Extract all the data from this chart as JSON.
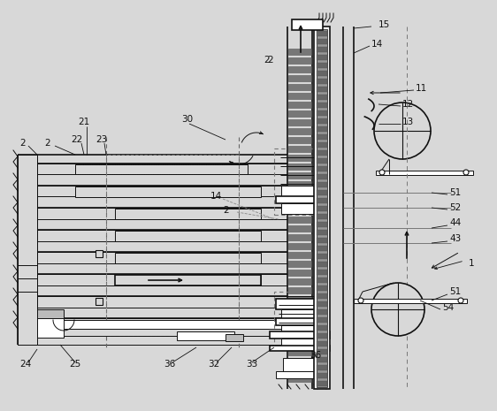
{
  "fig_width": 5.62,
  "fig_height": 4.65,
  "dpi": 100,
  "bg_color": "#d8d8d8",
  "line_color": "#111111",
  "gray_dark": "#555555",
  "gray_med": "#888888",
  "gray_light": "#bbbbbb",
  "white": "#ffffff"
}
